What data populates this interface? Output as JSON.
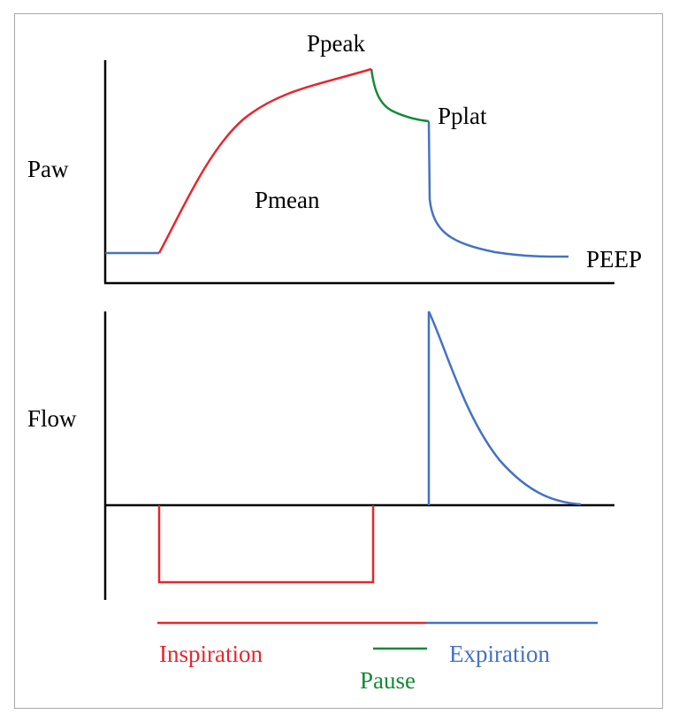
{
  "labels": {
    "paw": "Paw",
    "flow": "Flow",
    "ppeak": "Ppeak",
    "pplat": "Pplat",
    "pmean": "Pmean",
    "peep": "PEEP",
    "inspiration": "Inspiration",
    "pause": "Pause",
    "expiration": "Expiration"
  },
  "colors": {
    "inspiration": "#e8262d",
    "pause": "#138a36",
    "expiration": "#4472c4",
    "axis": "#000000",
    "frame": "#a8a8a8"
  }
}
